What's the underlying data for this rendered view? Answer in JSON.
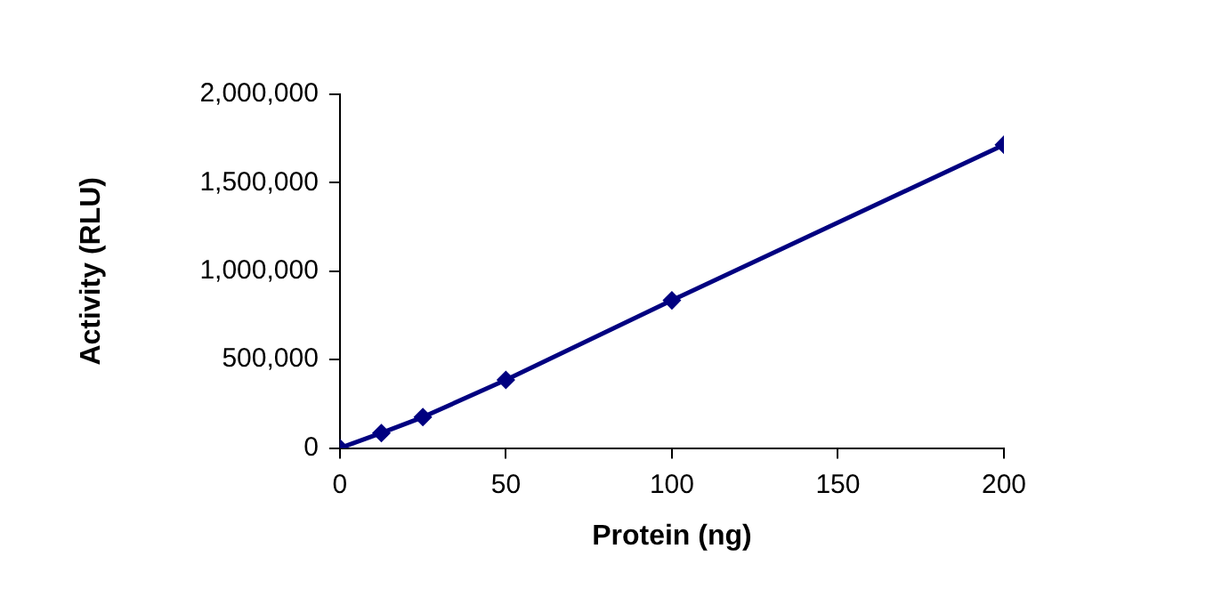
{
  "chart_data": {
    "type": "line",
    "xlabel": "Protein (ng)",
    "ylabel": "Activity (RLU)",
    "x": [
      0,
      12.5,
      25,
      50,
      100,
      200
    ],
    "series": [
      {
        "color": "#000080",
        "values": [
          0,
          85000,
          175000,
          385000,
          835000,
          1715000
        ]
      }
    ],
    "xlim": [
      0,
      200
    ],
    "xticks": [
      0,
      50,
      100,
      150,
      200
    ],
    "ylim": [
      0,
      2000000
    ],
    "yticks": [
      0,
      {
        "value": 500000,
        "label": "500,000"
      },
      {
        "value": 1000000,
        "label": "1,000,000"
      },
      {
        "value": 1500000,
        "label": "1,500,000"
      },
      {
        "value": 2000000,
        "label": "2,000,000"
      }
    ],
    "grid": false,
    "legend": false,
    "marker": "diamond",
    "line_style": "solid"
  }
}
